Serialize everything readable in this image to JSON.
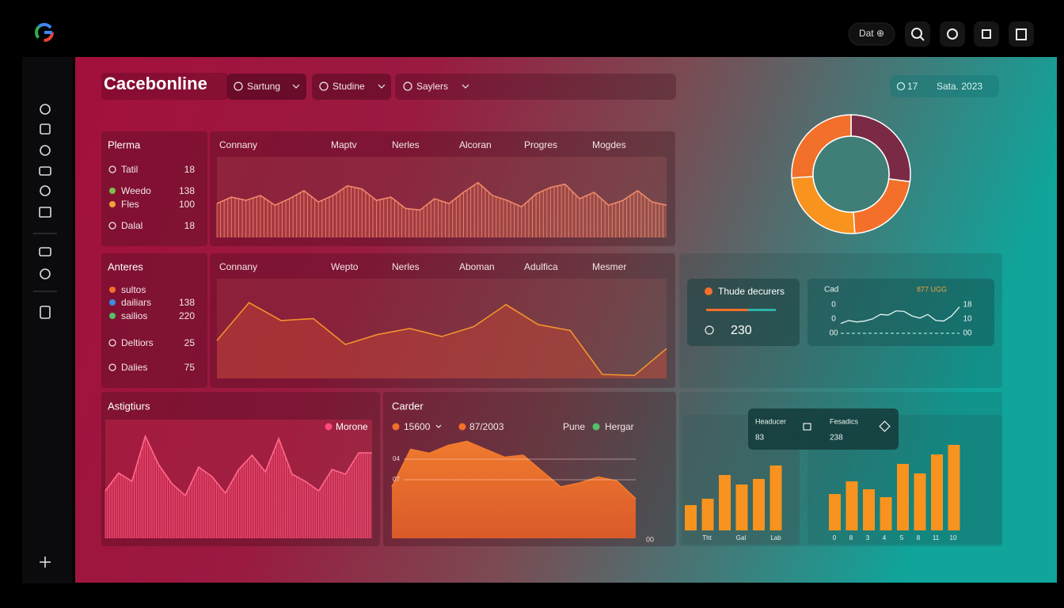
{
  "header": {
    "title": "Cacebonline",
    "filters": [
      "Sartung",
      "Studine",
      "Saylers"
    ],
    "badge_count": 17,
    "date": "Sata. 2023",
    "top_button": "Dat ⊕"
  },
  "plerma": {
    "title": "Plerma",
    "stats": [
      {
        "label": "Tatil",
        "value": 18
      },
      {
        "label": "Weedo",
        "value": 138
      },
      {
        "label": "Fles",
        "value": 100
      },
      {
        "label": "Dalal",
        "value": 18
      }
    ],
    "columns": [
      "Connany",
      "Maptv",
      "Nerles",
      "Alcoran",
      "Progres",
      "Mogdes"
    ],
    "values": [
      42,
      50,
      46,
      52,
      40,
      48,
      58,
      44,
      52,
      64,
      60,
      46,
      50,
      36,
      34,
      48,
      42,
      56,
      68,
      52,
      46,
      38,
      54,
      62,
      66,
      48,
      56,
      40,
      46,
      58,
      44,
      40
    ]
  },
  "anteres": {
    "title": "Anteres",
    "stats": [
      {
        "label": "sultos"
      },
      {
        "label": "dailiars",
        "value": 138
      },
      {
        "label": "sailios",
        "value": 220
      },
      {
        "label": "Deltiors",
        "value": 25
      },
      {
        "label": "Dalies",
        "value": 75
      }
    ],
    "columns": [
      "Connany",
      "Wepto",
      "Nerles",
      "Aboman",
      "Adulfica",
      "Mesmer"
    ],
    "values": [
      38,
      76,
      58,
      60,
      34,
      44,
      50,
      42,
      52,
      74,
      54,
      48,
      4,
      3,
      30
    ]
  },
  "astigtiurs": {
    "title": "Astigtiurs",
    "legend": "Morone",
    "values": [
      40,
      55,
      48,
      86,
      62,
      46,
      36,
      60,
      52,
      38,
      58,
      70,
      56,
      84,
      54,
      48,
      40,
      58,
      54,
      72,
      72
    ]
  },
  "carder": {
    "title": "Carder",
    "legend": [
      "15600",
      "87/2003",
      "Pune",
      "Hergar"
    ],
    "axis_labels": [
      "04",
      "07",
      "00"
    ],
    "values": [
      52,
      90,
      86,
      94,
      98,
      90,
      82,
      84,
      68,
      52,
      56,
      62,
      58,
      40
    ]
  },
  "donut": {
    "values": [
      27,
      22,
      25,
      26
    ],
    "colors": [
      "#7a2a45",
      "#f36f2a",
      "#f7931e",
      "#f2702a"
    ]
  },
  "decurers": {
    "title": "Thude decurers",
    "value": 230,
    "progress": 60
  },
  "cad": {
    "title": "Cad",
    "note": "877 UGG",
    "right_labels": [
      "18",
      "10",
      "00"
    ],
    "left_labels": [
      "0",
      "0",
      "00"
    ],
    "values": [
      30,
      40,
      35,
      38,
      45,
      60,
      58,
      72,
      70,
      55,
      48,
      60,
      40,
      38,
      55,
      85
    ]
  },
  "popup": {
    "items": [
      {
        "label": "Headucer",
        "value": "83"
      },
      {
        "label": "Fesadics",
        "value": "238"
      }
    ]
  },
  "bars_left": {
    "labels": [
      "Tht",
      "Gal",
      "Lab"
    ],
    "values": [
      32,
      40,
      70,
      58,
      65,
      82
    ]
  },
  "bars_right": {
    "labels": [
      "0",
      "8",
      "3",
      "4",
      "5",
      "8",
      "11",
      "10"
    ],
    "values": [
      46,
      62,
      52,
      42,
      84,
      72,
      96,
      108
    ]
  }
}
